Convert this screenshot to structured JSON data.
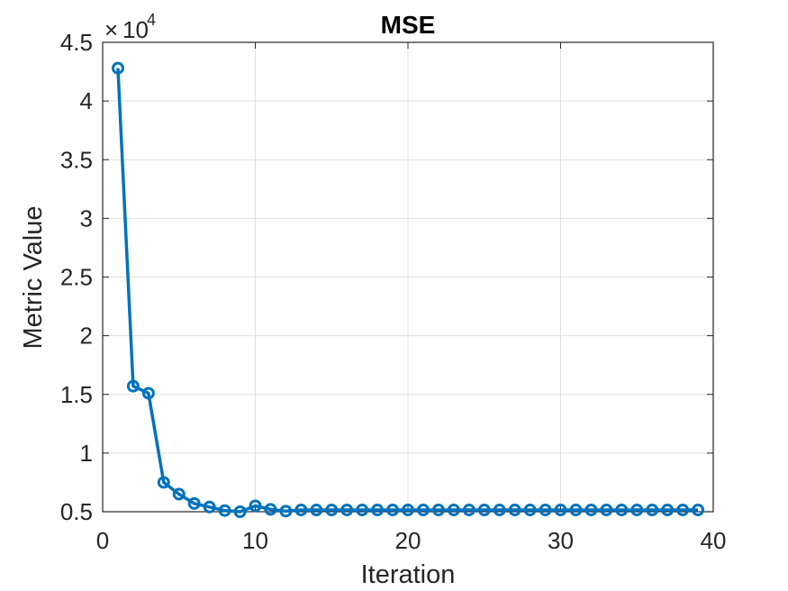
{
  "chart_data": {
    "type": "line",
    "title": "MSE",
    "xlabel": "Iteration",
    "ylabel": "Metric Value",
    "y_exponent_base": "10",
    "y_exponent_power": "4",
    "x_ticks": [
      "0",
      "10",
      "20",
      "30",
      "40"
    ],
    "y_ticks": [
      "0.5",
      "1",
      "1.5",
      "2",
      "2.5",
      "3",
      "3.5",
      "4",
      "4.5"
    ],
    "xlim": [
      0,
      40
    ],
    "ylim": [
      5000,
      45000
    ],
    "grid": true,
    "marker": "circle",
    "series_color": "#0072BD",
    "x": [
      1,
      2,
      3,
      4,
      5,
      6,
      7,
      8,
      9,
      10,
      11,
      12,
      13,
      14,
      15,
      16,
      17,
      18,
      19,
      20,
      21,
      22,
      23,
      24,
      25,
      26,
      27,
      28,
      29,
      30,
      31,
      32,
      33,
      34,
      35,
      36,
      37,
      38,
      39
    ],
    "values": [
      42800,
      15700,
      15100,
      7500,
      6500,
      5700,
      5400,
      5100,
      5000,
      5500,
      5200,
      5050,
      5150,
      5150,
      5150,
      5150,
      5150,
      5150,
      5150,
      5150,
      5150,
      5150,
      5150,
      5150,
      5150,
      5150,
      5150,
      5150,
      5150,
      5150,
      5150,
      5150,
      5150,
      5150,
      5150,
      5150,
      5150,
      5150,
      5150
    ]
  }
}
